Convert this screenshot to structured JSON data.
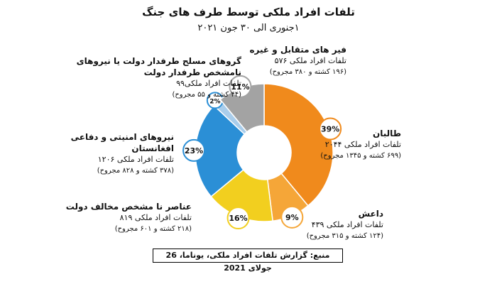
{
  "chart_data": {
    "type": "pie",
    "title": "تلفات افراد ملکی توسط طرف های جنگ",
    "subtitle": "۱جنوری الی ۳۰ جون ۲۰۲۱",
    "slices": [
      {
        "key": "taliban",
        "name": "طالبان",
        "value": 39,
        "pct_label": "39%",
        "stat": "تلفات افراد ملکی ۲۰۴۴",
        "detail": "(۶۹۹ کشته و ۱۳۴۵ مجروح)",
        "color": "#f08a1c"
      },
      {
        "key": "isis",
        "name": "داعش",
        "value": 9,
        "pct_label": "9%",
        "stat": "تلفات افراد ملکی ۴۳۹",
        "detail": "(۱۲۴ کشته و ۳۱۵ مجروح)",
        "color": "#f5a638"
      },
      {
        "key": "unknown_anti",
        "name": "عناصر نا مشخص مخالف دولت",
        "value": 16,
        "pct_label": "16%",
        "stat": "تلفات افراد ملکی ۸۱۹",
        "detail": "(۲۱۸ کشته و ۶۰۱ مجروح)",
        "color": "#f2cf1f"
      },
      {
        "key": "afg_forces",
        "name": "نیروهای امنیتی و دفاعی افغانستان",
        "value": 23,
        "pct_label": "23%",
        "stat": "تلفات افراد ملکی ۱۲۰۶",
        "detail": "(۳۷۸ کشته و ۸۲۸ مجروح)",
        "color": "#2b8fd6"
      },
      {
        "key": "progov",
        "name": "گروهای مسلح طرفدار دولت یا نیروهای نامشخص طرفدار دولت",
        "value": 2,
        "pct_label": "2%",
        "stat": "تلفات افراد ملکی۹۹",
        "detail": "(۴۴ کشته و ۵۵ مجروح)",
        "color": "#a9cdeb"
      },
      {
        "key": "crossfire",
        "name": "فیر های متقابل و غیره",
        "value": 11,
        "pct_label": "11%",
        "stat": "تلفات افراد ملکی ۵۷۶",
        "detail": "(۱۹۶ کشته و ۳۸۰ مجروح)",
        "color": "#a3a3a3"
      }
    ]
  },
  "source": "منبع: گزارش تلفات افراد ملکی، یوناما، 26 جولای 2021"
}
